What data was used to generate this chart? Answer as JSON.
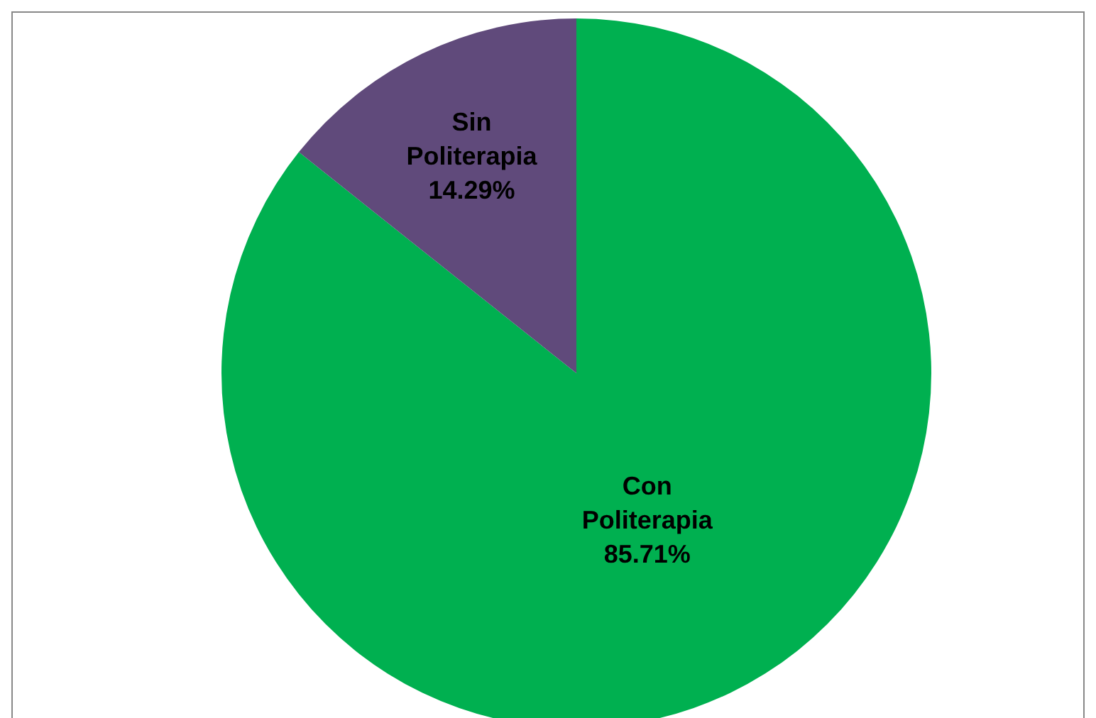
{
  "chart_data": {
    "type": "pie",
    "categories": [
      "Con Politerapia",
      "Sin Politerapia"
    ],
    "values": [
      85.71,
      14.29
    ],
    "value_labels": [
      "85.71%",
      "14.29%"
    ],
    "colors": [
      "#00b050",
      "#604a7b"
    ]
  }
}
